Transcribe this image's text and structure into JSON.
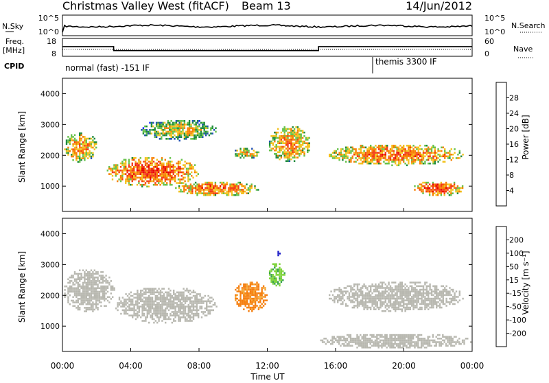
{
  "header": {
    "station": "Christmas Valley West (fitACF)",
    "beam": "Beam 13",
    "date": "14/Jun/2012"
  },
  "noise_panel": {
    "left_label": "N.Sky",
    "right_label": "N.Search",
    "left_ticks": [
      "10^5",
      "10^0"
    ],
    "right_ticks": [
      "10^5",
      "10^0"
    ]
  },
  "freq_panel": {
    "left_label_1": "Freq.",
    "left_label_2": "[MHz]",
    "right_label": "Nave",
    "left_ticks": [
      "18",
      "8"
    ],
    "right_ticks": [
      "60",
      "0"
    ],
    "frequency_steps": [
      {
        "t0": 0.0,
        "t1": 3.0,
        "mhz": 13.4
      },
      {
        "t0": 3.0,
        "t1": 15.0,
        "mhz": 11.2
      },
      {
        "t0": 15.0,
        "t1": 24.0,
        "mhz": 13.4
      }
    ]
  },
  "cpid": {
    "label": "CPID",
    "modes": [
      {
        "name": "normal (fast) -151 IF",
        "start_hour": 0.0
      },
      {
        "name": "themis 3300 IF",
        "start_hour": 18.0
      }
    ]
  },
  "axes": {
    "x_label": "Time UT",
    "x_ticks": [
      "00:00",
      "04:00",
      "08:00",
      "12:00",
      "16:00",
      "20:00",
      "00:00"
    ],
    "x_range_hours": [
      0,
      24
    ],
    "y_label": "Slant Range [km]",
    "y_ticks": [
      "1000",
      "2000",
      "3000",
      "4000"
    ],
    "y_range_km": [
      180,
      4500
    ]
  },
  "chart_data": [
    {
      "type": "heatmap",
      "quantity": "power",
      "colorbar_label": "Power [dB]",
      "colorbar_ticks": [
        "4",
        "8",
        "12",
        "16",
        "20",
        "24",
        "28"
      ],
      "colorbar_range": [
        0,
        30
      ],
      "colors": [
        "#0b22ff",
        "#1f4fb4",
        "#1d8a3c",
        "#66c24a",
        "#f3c21f",
        "#f77f00",
        "#f33a12",
        "#e80000"
      ],
      "echo_regions": [
        {
          "t": [
            0.0,
            2.0
          ],
          "km": [
            1800,
            2800
          ],
          "db": 22
        },
        {
          "t": [
            2.5,
            8.0
          ],
          "km": [
            1000,
            2000
          ],
          "db": 26
        },
        {
          "t": [
            4.5,
            9.0
          ],
          "km": [
            2500,
            3200
          ],
          "db": 18
        },
        {
          "t": [
            6.5,
            11.5
          ],
          "km": [
            700,
            1200
          ],
          "db": 24
        },
        {
          "t": [
            10.0,
            11.5
          ],
          "km": [
            1900,
            2300
          ],
          "db": 20
        },
        {
          "t": [
            12.0,
            14.5
          ],
          "km": [
            1800,
            3000
          ],
          "db": 22
        },
        {
          "t": [
            15.5,
            23.5
          ],
          "km": [
            1700,
            2400
          ],
          "db": 24
        },
        {
          "t": [
            20.5,
            23.5
          ],
          "km": [
            700,
            1200
          ],
          "db": 26
        }
      ]
    },
    {
      "type": "heatmap",
      "quantity": "velocity",
      "colorbar_label": "Velocity [m s⁻¹]",
      "colorbar_ticks": [
        "200",
        "100",
        "50",
        "15",
        "-15",
        "-50",
        "-100",
        "-200"
      ],
      "colorbar_range": [
        -250,
        250
      ],
      "colors": [
        "#2020c8",
        "#2c5a98",
        "#35a050",
        "#7ed33a",
        "#b8b8b0",
        "#f4a534",
        "#f57f10",
        "#f25510",
        "#e81010"
      ],
      "echo_regions": [
        {
          "t": [
            0.0,
            3.0
          ],
          "km": [
            1500,
            2900
          ],
          "v": 0
        },
        {
          "t": [
            3.0,
            9.0
          ],
          "km": [
            1100,
            2300
          ],
          "v": 0
        },
        {
          "t": [
            10.0,
            12.0
          ],
          "km": [
            1500,
            2500
          ],
          "v": -60
        },
        {
          "t": [
            12.0,
            13.0
          ],
          "km": [
            2300,
            3100
          ],
          "v": 40
        },
        {
          "t": [
            12.5,
            12.7
          ],
          "km": [
            3300,
            3500
          ],
          "v": 220
        },
        {
          "t": [
            15.5,
            23.5
          ],
          "km": [
            1500,
            2500
          ],
          "v": 0
        },
        {
          "t": [
            15.0,
            24.0
          ],
          "km": [
            300,
            800
          ],
          "v": 0
        }
      ]
    }
  ]
}
